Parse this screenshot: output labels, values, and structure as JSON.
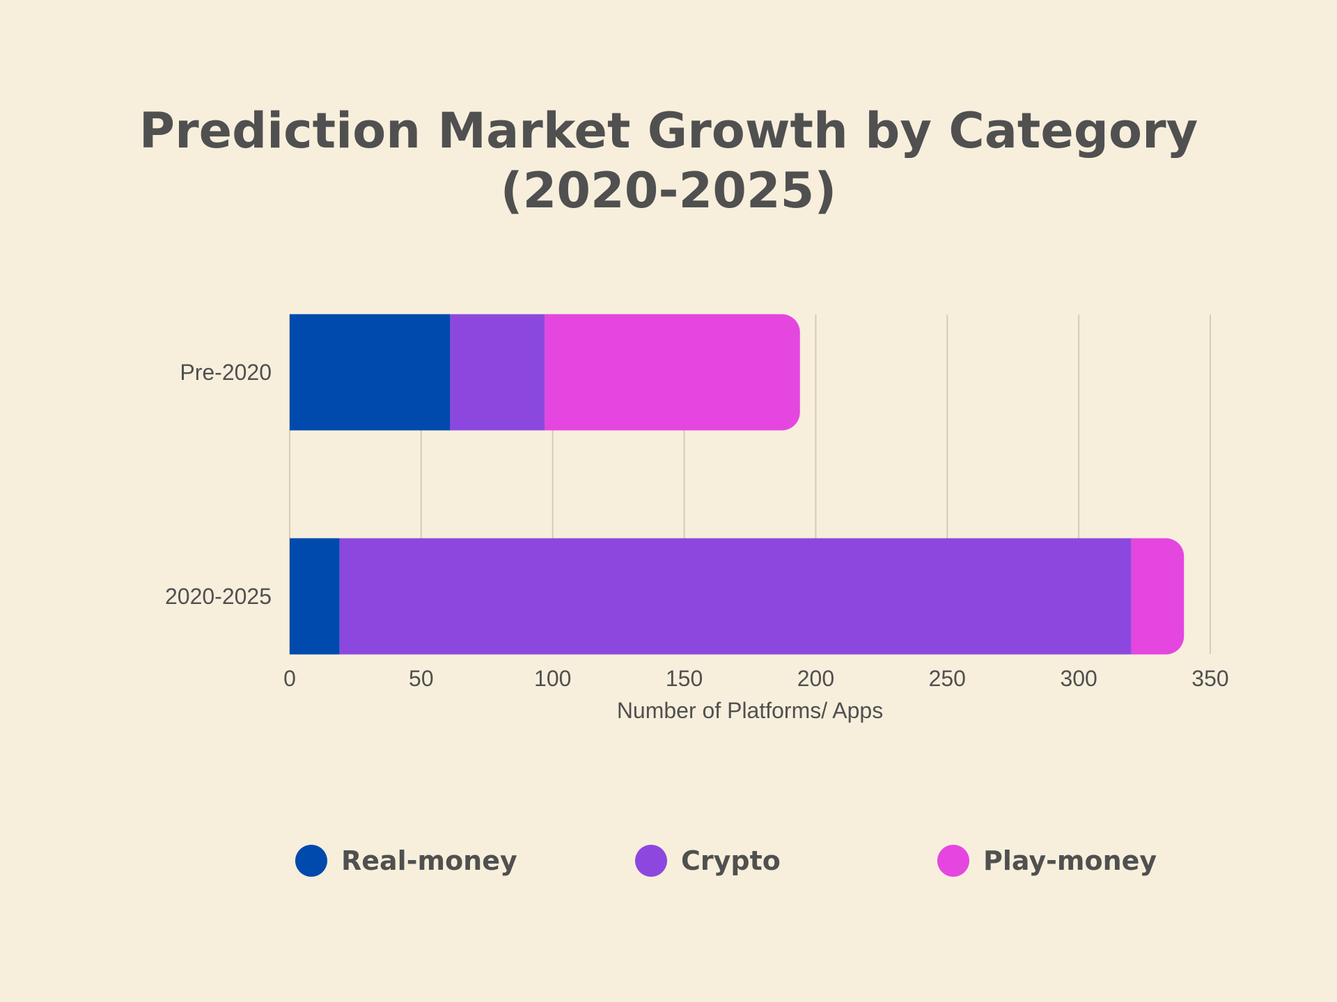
{
  "chart_data": {
    "type": "bar",
    "orientation": "horizontal",
    "stacked": true,
    "title_lines": [
      "Prediction Market Growth by Category",
      "(2020-2025)"
    ],
    "categories": [
      "Pre-2020",
      "2020-2025"
    ],
    "series": [
      {
        "name": "Real-money",
        "values": [
          61,
          19
        ],
        "color": "#004aad"
      },
      {
        "name": "Crypto",
        "values": [
          36,
          301
        ],
        "color": "#8c48de"
      },
      {
        "name": "Play-money",
        "values": [
          97,
          20
        ],
        "color": "#e546e0"
      }
    ],
    "xlabel": "Number of Platforms/ Apps",
    "ylabel": "",
    "xlim": [
      0,
      350
    ],
    "xticks": [
      "0",
      "50",
      "100",
      "150",
      "200",
      "250",
      "300",
      "350"
    ],
    "grid": true,
    "legend": "bottom"
  }
}
